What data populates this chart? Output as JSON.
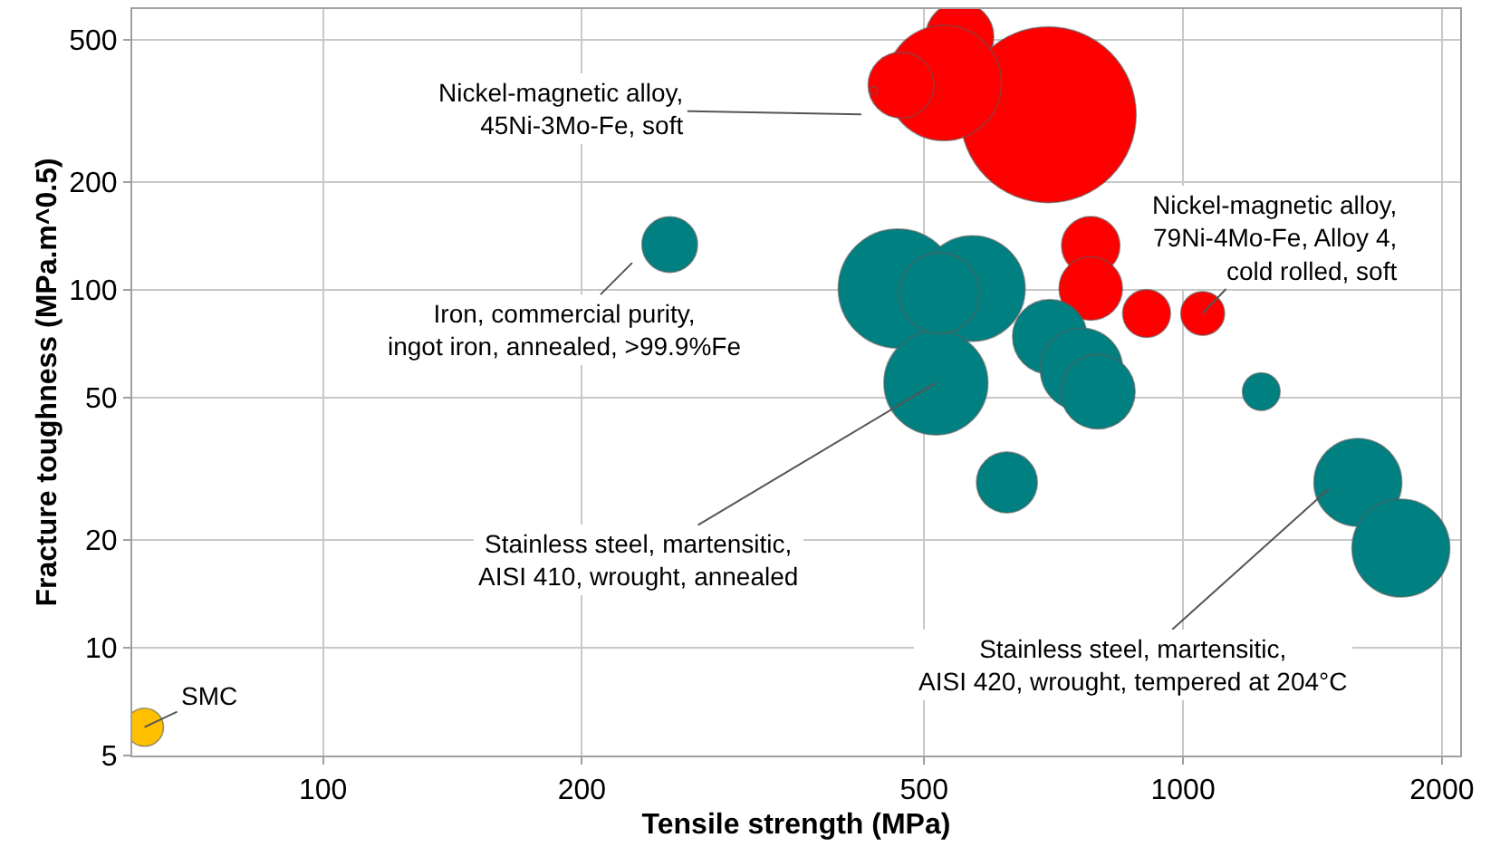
{
  "chart_data": {
    "type": "bubble",
    "xlabel": "Tensile strength (MPa)",
    "ylabel": "Fracture toughness (MPa.m^0.5)",
    "xlim": [
      60,
      2100
    ],
    "ylim": [
      5,
      610
    ],
    "xticks": [
      100,
      200,
      500,
      1000,
      2000
    ],
    "yticks": [
      5,
      10,
      20,
      50,
      100,
      200,
      500
    ],
    "log": "xy",
    "grid": true,
    "series": [
      {
        "color": "#ff0000",
        "x": [
          550,
          697,
          527,
          470,
          437,
          781,
          781,
          907,
          1054
        ],
        "values": [
          511,
          309,
          379,
          374,
          361,
          133,
          101,
          86,
          86
        ],
        "sizes": [
          0.15,
          1,
          0.43,
          0.14,
          0.002,
          0.11,
          0.13,
          0.074,
          0.062
        ]
      },
      {
        "color": "#008080",
        "x": [
          253,
          466,
          569,
          516,
          521,
          624,
          700,
          762,
          796,
          1233,
          1597,
          1792
        ],
        "values": [
          134,
          101,
          101,
          55,
          98,
          29,
          74,
          60,
          52,
          52,
          29,
          19
        ],
        "sizes": [
          0.1,
          0.46,
          0.36,
          0.35,
          0.21,
          0.12,
          0.18,
          0.22,
          0.18,
          0.046,
          0.25,
          0.31
        ]
      },
      {
        "color": "#ffc000",
        "x": [
          62
        ],
        "values": [
          6
        ],
        "sizes": [
          0.047
        ]
      }
    ],
    "annotations": [
      "Nickel-magnetic alloy,\n45Ni-3Mo-Fe, soft",
      {
        "text": "Nickel-magnetic alloy,\n79Ni-4Mo-Fe, Alloy 4,\ncold rolled, soft",
        "x": 1054,
        "y": 86
      },
      "Iron, commercial purity,\ningot iron, annealed, >99.9%Fe",
      {
        "text": "Stainless steel, martensitic,\nAISI 410, wrought, annealed",
        "x": 516,
        "y": 55
      },
      "Stainless steel, martensitic,\nAISI 420, wrought, tempered at 204°C",
      {
        "text": "SMC",
        "x": 62,
        "y": 6
      }
    ]
  }
}
